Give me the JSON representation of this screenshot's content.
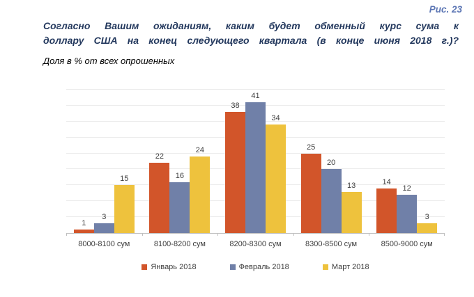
{
  "header": {
    "figure_ref": "Рис. 23",
    "title": "Согласно Вашим ожиданиям, каким будет обменный курс сума к доллару США на конец следующего квартала (в конце июня 2018 г.)?",
    "title_lines": [
      "Согласно Вашим ожиданиям, каким будет обменный курс сума к",
      "доллару США на конец следующего квартала (в конце июня 2018 г.)?"
    ],
    "subtitle": "Доля в % от всех опрошенных"
  },
  "chart_data": {
    "type": "bar",
    "title": "Согласно Вашим ожиданиям, каким будет обменный курс сума к доллару США на конец следующего квартала (в конце июня 2018 г.)?",
    "subtitle": "Доля в % от всех опрошенных",
    "categories": [
      "8000-8100 сум",
      "8100-8200 сум",
      "8200-8300 сум",
      "8300-8500 сум",
      "8500-9000 сум"
    ],
    "series": [
      {
        "name": "Январь 2018",
        "color": "#D2552A",
        "values": [
          1,
          22,
          38,
          25,
          14
        ]
      },
      {
        "name": "Февраль 2018",
        "color": "#7080A8",
        "values": [
          3,
          16,
          41,
          20,
          12
        ]
      },
      {
        "name": "Март 2018",
        "color": "#EEC23D",
        "values": [
          15,
          24,
          34,
          13,
          3
        ]
      }
    ],
    "xlabel": "",
    "ylabel": "Доля в % от всех опрошенных",
    "ylim": [
      0,
      45
    ],
    "grid_step": 5,
    "grid": true,
    "y_axis_labels_visible": false,
    "data_labels": true,
    "legend_position": "bottom"
  },
  "colors": {
    "title_text": "#24395E",
    "figure_ref_text": "#5C76B4",
    "grid_line": "#ECECEC",
    "axis_line": "#BFBFBF",
    "label_text": "#3D3D3D"
  }
}
